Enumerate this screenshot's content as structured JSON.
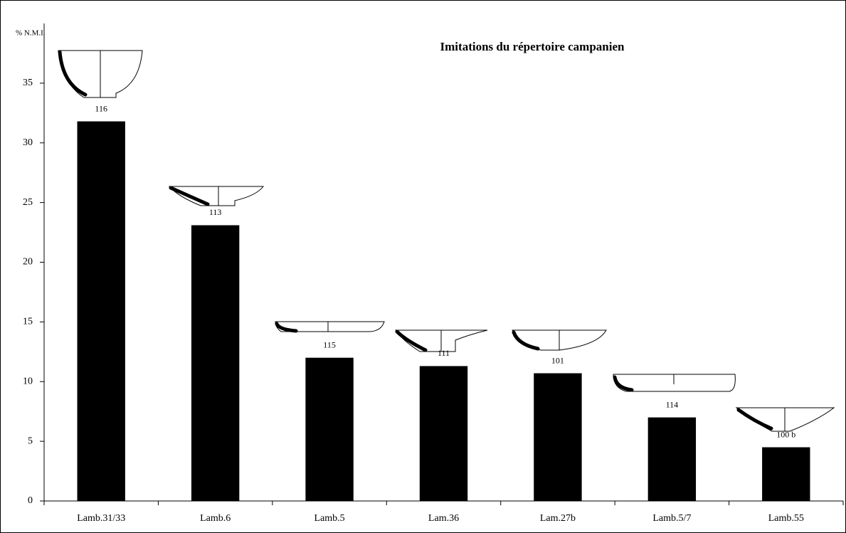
{
  "chart_data": {
    "type": "bar",
    "title": "Imitations du répertoire campanien",
    "y_label": "% N.M.I.",
    "categories": [
      "Lamb.31/33",
      "Lamb.6",
      "Lamb.5",
      "Lam.36",
      "Lam.27b",
      "Lamb.5/7",
      "Lamb.55"
    ],
    "values": [
      31.8,
      23.1,
      12.0,
      11.3,
      10.7,
      7.0,
      4.5
    ],
    "annotations": [
      "116",
      "113",
      "115",
      "111",
      "101",
      "114",
      "100 b"
    ],
    "color": "#000000",
    "ylim": [
      0,
      40
    ],
    "yticks": [
      0,
      5,
      10,
      15,
      20,
      25,
      30,
      35
    ]
  }
}
